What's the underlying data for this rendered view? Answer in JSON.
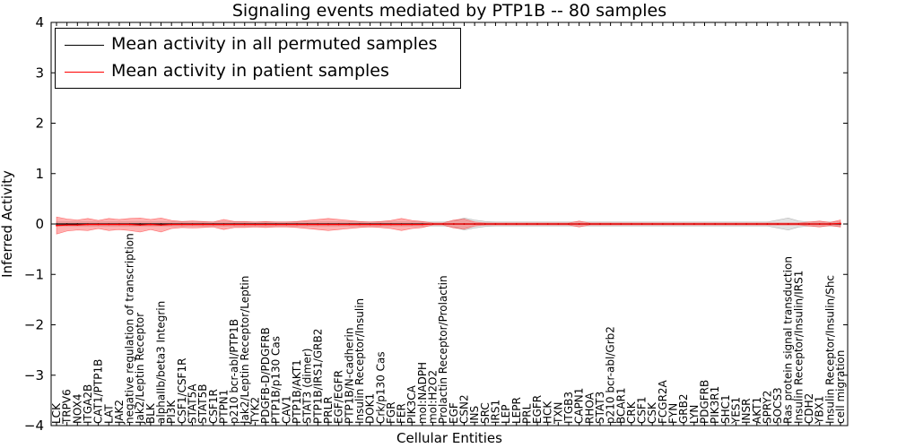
{
  "chart_data": {
    "type": "line",
    "title": "Signaling events mediated by PTP1B -- 80 samples",
    "xlabel": "Cellular Entities",
    "ylabel": "Inferred Activity",
    "ylim": [
      -4,
      4
    ],
    "yticks": [
      "4",
      "3",
      "2",
      "1",
      "0",
      "−1",
      "−2",
      "−3",
      "−4"
    ],
    "categories": [
      "LCK",
      "TRPV6",
      "NOX4",
      "ITGA2B",
      "CAT1/PTP1B",
      "LAT",
      "JAK2",
      "negative regulation of transcription",
      "Jak2/Leptin Receptor",
      "BLK",
      "alphaIIb/beta3 Integrin",
      "PI3K",
      "CSF1/CSF1R",
      "STAT5A",
      "STAT5B",
      "CSF1R",
      "PTPN1",
      "p210 bcr-abl/PTP1B",
      "Jak2/Leptin Receptor/Leptin",
      "TYK2",
      "PDGFB-D/PDGFRB",
      "PTP1B/p130 Cas",
      "CAV1",
      "PTP1B/AKT1",
      "STAT3 (dimer)",
      "PTP1B/IRS1/GRB2",
      "PRLR",
      "EGF/EGFR",
      "PTP1B/N-cadherin",
      "Insulin Receptor/Insulin",
      "DOK1",
      "Crk/p130 Cas",
      "FGR",
      "FER",
      "PIK3CA",
      "mol:NADPH",
      "mol:H2O2",
      "Prolactin Receptor/Prolactin",
      "EGF",
      "CSN2",
      "INS",
      "SRC",
      "IRS1",
      "LEP",
      "LEPR",
      "PRL",
      "EGFR",
      "HCK",
      "TXN",
      "ITGB3",
      "CAPN1",
      "RHOA",
      "STAT3",
      "p210 bcr-abl/Grb2",
      "BCAR1",
      "CRK",
      "CSF1",
      "CSK",
      "FCGR2A",
      "FYN",
      "GRB2",
      "LYN",
      "PDGFRB",
      "PIK3R1",
      "SHC1",
      "YES1",
      "INSR",
      "AKT1",
      "SPRY2",
      "SOCS3",
      "Ras protein signal transduction",
      "Insulin Receptor/Insulin/IRS1",
      "CDH2",
      "YBX1",
      "Insulin Receptor/Insulin/Shc",
      "cell migration"
    ],
    "series": [
      {
        "name": "Mean activity in all permuted samples",
        "color": "#000000",
        "values": [
          0,
          0,
          0,
          0,
          0,
          0,
          0,
          0,
          0,
          0,
          0,
          0,
          0,
          0,
          0,
          0,
          0,
          0,
          0,
          0,
          0,
          0,
          0,
          0,
          0,
          0,
          0,
          0,
          0,
          0,
          0,
          0,
          0,
          0,
          0,
          0,
          0,
          0,
          0,
          0,
          0,
          0,
          0,
          0,
          0,
          0,
          0,
          0,
          0,
          0,
          0,
          0,
          0,
          0,
          0,
          0,
          0,
          0,
          0,
          0,
          0,
          0,
          0,
          0,
          0,
          0,
          0,
          0,
          0,
          0,
          0,
          0,
          0,
          0,
          0,
          0
        ],
        "band": [
          0.04,
          0.04,
          0.04,
          0.04,
          0.04,
          0.04,
          0.04,
          0.04,
          0.04,
          0.04,
          0.04,
          0.04,
          0.04,
          0.04,
          0.04,
          0.04,
          0.04,
          0.04,
          0.04,
          0.04,
          0.04,
          0.04,
          0.04,
          0.04,
          0.04,
          0.04,
          0.04,
          0.04,
          0.04,
          0.04,
          0.04,
          0.04,
          0.04,
          0.04,
          0.04,
          0.04,
          0.04,
          0.04,
          0.06,
          0.12,
          0.08,
          0.05,
          0.04,
          0.04,
          0.04,
          0.04,
          0.04,
          0.04,
          0.04,
          0.04,
          0.04,
          0.04,
          0.04,
          0.04,
          0.04,
          0.04,
          0.04,
          0.04,
          0.04,
          0.04,
          0.04,
          0.04,
          0.04,
          0.04,
          0.04,
          0.04,
          0.04,
          0.04,
          0.04,
          0.08,
          0.12,
          0.06,
          0.04,
          0.04,
          0.04,
          0.04
        ]
      },
      {
        "name": "Mean activity in patient samples",
        "color": "#ff0000",
        "values": [
          -0.03,
          -0.02,
          -0.02,
          -0.01,
          -0.01,
          -0.01,
          -0.01,
          -0.01,
          -0.02,
          -0.01,
          -0.02,
          -0.01,
          -0.01,
          -0.01,
          -0.01,
          -0.01,
          -0.01,
          -0.01,
          -0.01,
          -0.01,
          -0.01,
          -0.01,
          -0.01,
          -0.01,
          -0.01,
          -0.01,
          -0.01,
          -0.01,
          -0.01,
          -0.01,
          -0.01,
          -0.01,
          -0.01,
          -0.01,
          -0.01,
          -0.01,
          0,
          0,
          0,
          0,
          0,
          0,
          0,
          0,
          0,
          0,
          0,
          0,
          0,
          0,
          0,
          0,
          0,
          0,
          0,
          0,
          0,
          0,
          0,
          0,
          0,
          0,
          0,
          0,
          0,
          0,
          0,
          0,
          0,
          0,
          0,
          0,
          0,
          0,
          0,
          0.01
        ],
        "band": [
          0.17,
          0.12,
          0.1,
          0.12,
          0.08,
          0.12,
          0.1,
          0.12,
          0.14,
          0.1,
          0.14,
          0.08,
          0.06,
          0.07,
          0.06,
          0.05,
          0.1,
          0.06,
          0.06,
          0.05,
          0.06,
          0.05,
          0.05,
          0.06,
          0.08,
          0.1,
          0.12,
          0.1,
          0.08,
          0.06,
          0.05,
          0.06,
          0.08,
          0.12,
          0.08,
          0.06,
          0.02,
          0.02,
          0.08,
          0.1,
          0.04,
          0.02,
          0.02,
          0.02,
          0.02,
          0.02,
          0.02,
          0.02,
          0.02,
          0.02,
          0.06,
          0.02,
          0.02,
          0.02,
          0.02,
          0.02,
          0.02,
          0.02,
          0.02,
          0.02,
          0.02,
          0.02,
          0.02,
          0.02,
          0.02,
          0.02,
          0.02,
          0.02,
          0.02,
          0.02,
          0.02,
          0.02,
          0.04,
          0.06,
          0.03,
          0.07
        ]
      }
    ]
  }
}
